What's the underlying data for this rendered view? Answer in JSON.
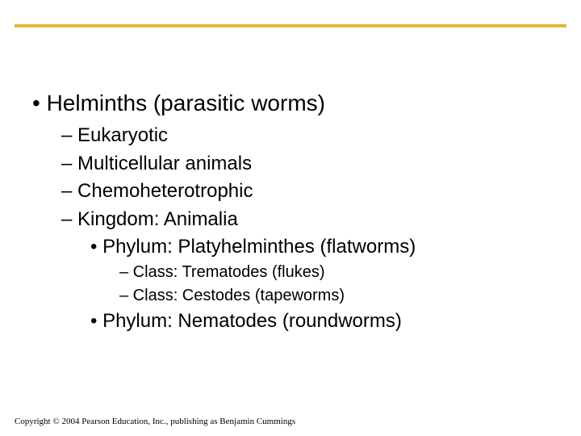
{
  "topbar_color": "#e6b838",
  "background_color": "#ffffff",
  "text_color": "#000000",
  "content": {
    "l1_1": "• Helminths (parasitic worms)",
    "l2_1": "– Eukaryotic",
    "l2_2": "– Multicellular animals",
    "l2_3": "– Chemoheterotrophic",
    "l2_4": "– Kingdom: Animalia",
    "l3_1": "• Phylum: Platyhelminthes (flatworms)",
    "l4_1": "– Class: Trematodes (flukes)",
    "l4_2": "– Class: Cestodes (tapeworms)",
    "l3_2": "• Phylum: Nematodes (roundworms)"
  },
  "copyright": "Copyright © 2004 Pearson Education, Inc., publishing as Benjamin Cummings",
  "fonts": {
    "body_family": "Arial",
    "copyright_family": "Georgia",
    "lvl1_size_pt": 28,
    "lvl2_size_pt": 24,
    "lvl3_size_pt": 24,
    "lvl4_size_pt": 20,
    "copyright_size_pt": 11
  }
}
